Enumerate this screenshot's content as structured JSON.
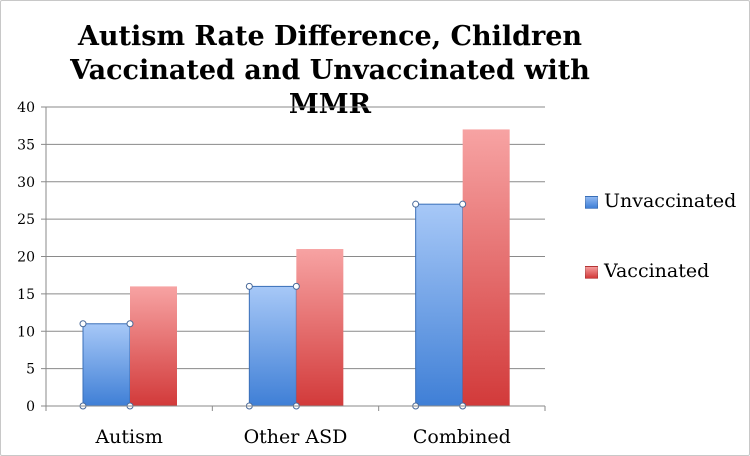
{
  "chart_data": {
    "type": "bar",
    "title_lines": [
      "Autism Rate Difference, Children",
      "Vaccinated and Unvaccinated with MMR"
    ],
    "categories": [
      "Autism",
      "Other ASD",
      "Combined"
    ],
    "series": [
      {
        "name": "Unvaccinated",
        "values": [
          11,
          16,
          27
        ],
        "color": "#5b8fd9"
      },
      {
        "name": "Vaccinated",
        "values": [
          16,
          21,
          37
        ],
        "color": "#e05a5a"
      }
    ],
    "y_ticks": [
      "0",
      "5",
      "10",
      "15",
      "20",
      "25",
      "30",
      "35",
      "40"
    ],
    "ylim": [
      0,
      40
    ],
    "grid": true,
    "legend_position": "right"
  }
}
